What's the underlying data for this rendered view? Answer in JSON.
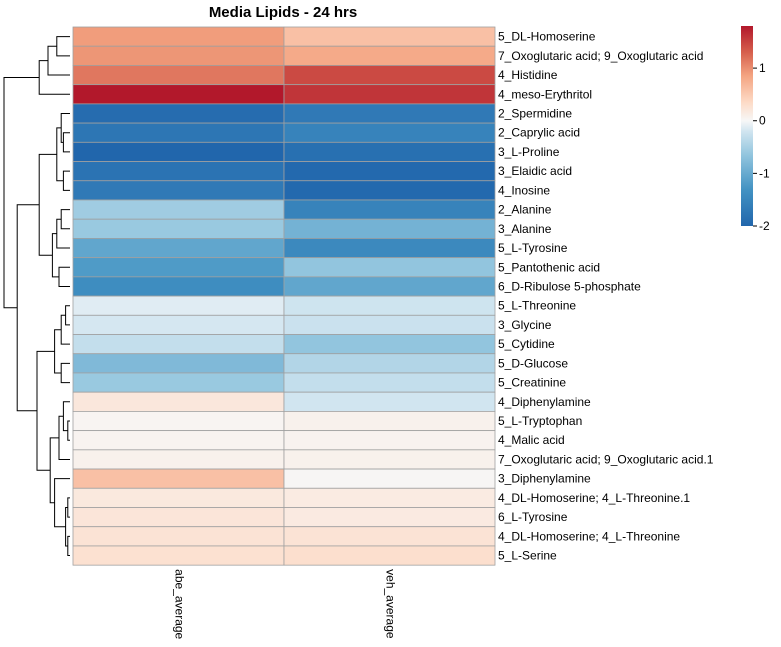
{
  "chart_data": {
    "type": "heatmap",
    "title": "Media Lipids - 24 hrs",
    "columns": [
      "abe_average",
      "veh_average"
    ],
    "rows": [
      "5_DL-Homoserine",
      "7_Oxoglutaric acid; 9_Oxoglutaric acid",
      "4_Histidine",
      "4_meso-Erythritol",
      "2_Spermidine",
      "2_Caprylic acid",
      "3_L-Proline",
      "3_Elaidic acid",
      "4_Inosine",
      "2_Alanine",
      "3_Alanine",
      "5_L-Tyrosine",
      "5_Pantothenic acid",
      "6_D-Ribulose 5-phosphate",
      "5_L-Threonine",
      "3_Glycine",
      "5_Cytidine",
      "5_D-Glucose",
      "5_Creatinine",
      "4_Diphenylamine",
      "5_L-Tryptophan",
      "4_Malic acid",
      "7_Oxoglutaric acid; 9_Oxoglutaric acid.1",
      "3_Diphenylamine",
      "4_DL-Homoserine; 4_L-Threonine.1",
      "6_L-Tyrosine",
      "4_DL-Homoserine; 4_L-Threonine",
      "5_L-Serine"
    ],
    "values": [
      [
        0.9,
        0.6
      ],
      [
        0.95,
        0.8
      ],
      [
        1.15,
        1.45
      ],
      [
        1.85,
        1.6
      ],
      [
        -1.9,
        -1.7
      ],
      [
        -1.75,
        -1.55
      ],
      [
        -2.0,
        -1.85
      ],
      [
        -1.8,
        -1.95
      ],
      [
        -1.7,
        -1.95
      ],
      [
        -0.55,
        -1.55
      ],
      [
        -0.6,
        -0.9
      ],
      [
        -1.05,
        -1.45
      ],
      [
        -1.2,
        -0.65
      ],
      [
        -1.4,
        -1.05
      ],
      [
        -0.12,
        -0.22
      ],
      [
        -0.18,
        -0.25
      ],
      [
        -0.3,
        -0.65
      ],
      [
        -0.8,
        -0.42
      ],
      [
        -0.6,
        -0.3
      ],
      [
        0.2,
        -0.2
      ],
      [
        0.04,
        0.08
      ],
      [
        0.05,
        0.06
      ],
      [
        0.08,
        0.08
      ],
      [
        0.6,
        0.02
      ],
      [
        0.18,
        0.15
      ],
      [
        0.22,
        0.16
      ],
      [
        0.25,
        0.25
      ],
      [
        0.28,
        0.3
      ]
    ],
    "legend": {
      "position": "top-right",
      "range": [
        -2,
        1.8
      ],
      "ticks": [
        1,
        0,
        -1,
        -2
      ],
      "tick_labels": [
        "1",
        "0",
        "-1",
        "-2"
      ]
    },
    "row_dendrogram": true,
    "column_dendrogram": false,
    "grid": false
  }
}
